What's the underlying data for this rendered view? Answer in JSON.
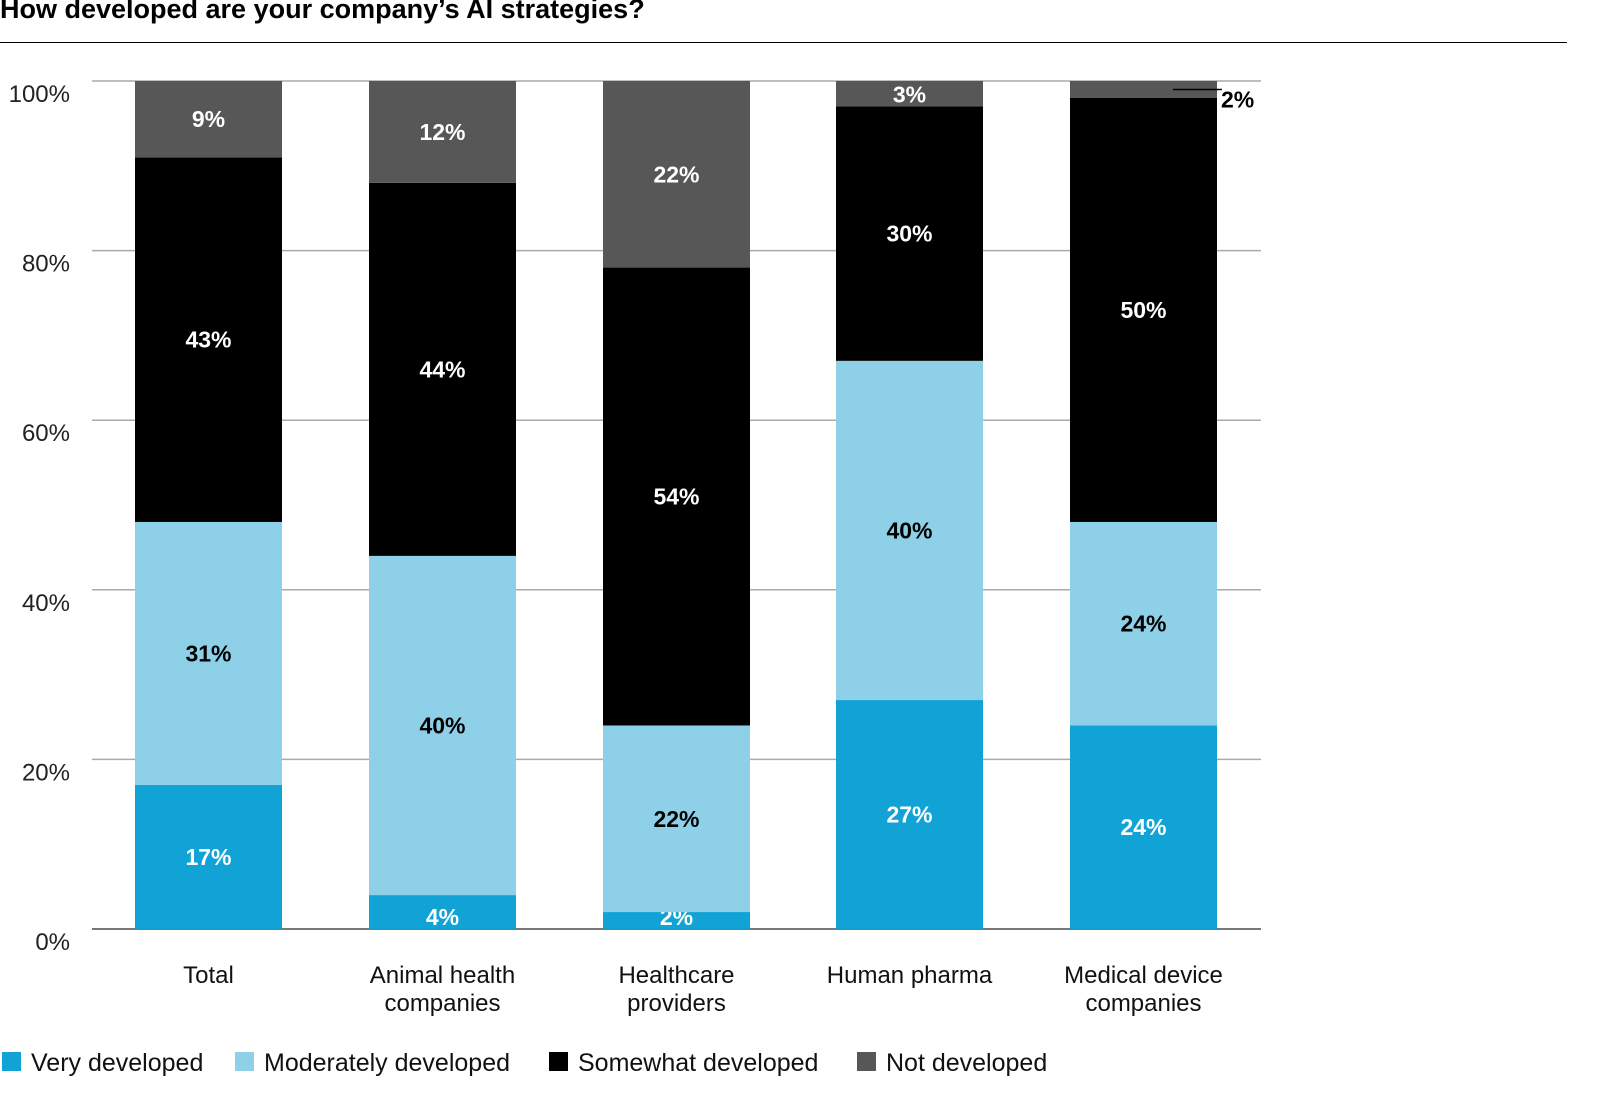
{
  "chart_data": {
    "type": "bar",
    "stacked": true,
    "title": "How developed are your company’s AI strategies?",
    "categories": [
      [
        "Total"
      ],
      [
        "Animal health",
        "companies"
      ],
      [
        "Healthcare",
        "providers"
      ],
      [
        "Human pharma"
      ],
      [
        "Medical device",
        "companies"
      ]
    ],
    "series": [
      {
        "name": "Very developed",
        "color": "#12a3d6",
        "values": [
          17,
          4,
          2,
          27,
          24
        ],
        "label_color": "#ffffff"
      },
      {
        "name": "Moderately developed",
        "color": "#8dd0e8",
        "values": [
          31,
          40,
          22,
          40,
          24
        ],
        "label_color": "#000000"
      },
      {
        "name": "Somewhat developed",
        "color": "#000000",
        "values": [
          43,
          44,
          54,
          30,
          50
        ],
        "label_color": "#ffffff"
      },
      {
        "name": "Not developed",
        "color": "#575757",
        "values": [
          9,
          12,
          22,
          3,
          2
        ],
        "label_color": "#ffffff"
      }
    ],
    "yticks": [
      "0%",
      "20%",
      "40%",
      "60%",
      "80%",
      "100%"
    ],
    "ylim": [
      0,
      100
    ],
    "grid": true,
    "legend": "bottom-left"
  }
}
